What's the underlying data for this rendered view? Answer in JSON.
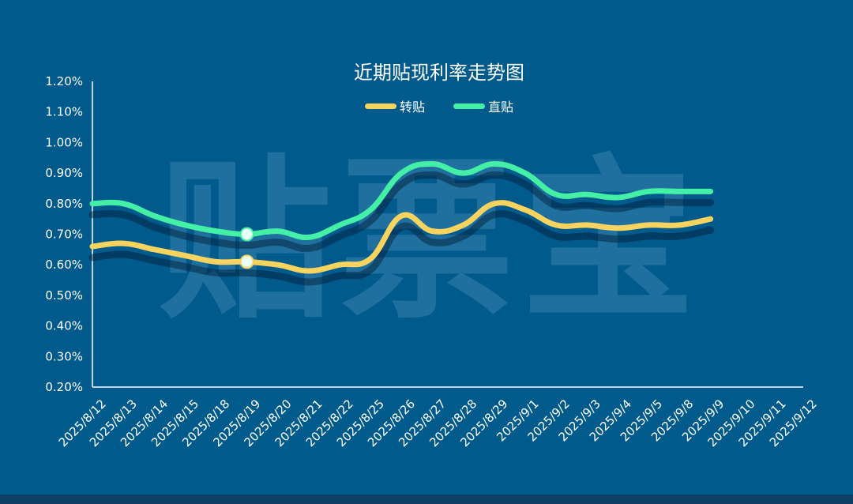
{
  "chart_data": {
    "type": "line",
    "title": "近期贴现利率走势图",
    "watermark_text": "贴票宝",
    "categories": [
      "2025/8/12",
      "2025/8/13",
      "2025/8/14",
      "2025/8/15",
      "2025/8/18",
      "2025/8/19",
      "2025/8/20",
      "2025/8/21",
      "2025/8/22",
      "2025/8/25",
      "2025/8/26",
      "2025/8/27",
      "2025/8/28",
      "2025/8/29",
      "2025/9/1",
      "2025/9/2",
      "2025/9/3",
      "2025/9/4",
      "2025/9/5",
      "2025/9/8",
      "2025/9/9",
      "2025/9/10",
      "2025/9/11",
      "2025/9/12"
    ],
    "series": [
      {
        "name": "转贴",
        "color": "#f8d35e",
        "values": [
          0.66,
          0.67,
          0.65,
          0.63,
          0.61,
          0.61,
          0.6,
          0.58,
          0.6,
          0.62,
          0.76,
          0.71,
          0.73,
          0.8,
          0.78,
          0.73,
          0.73,
          0.72,
          0.73,
          0.73,
          0.75,
          null,
          null,
          null
        ]
      },
      {
        "name": "直贴",
        "color": "#44f0a6",
        "values": [
          0.8,
          0.8,
          0.76,
          0.73,
          0.71,
          0.7,
          0.71,
          0.69,
          0.73,
          0.78,
          0.9,
          0.93,
          0.9,
          0.93,
          0.9,
          0.83,
          0.83,
          0.82,
          0.84,
          0.84,
          0.84,
          null,
          null,
          null
        ]
      }
    ],
    "y_ticks": [
      "0.20%",
      "0.30%",
      "0.40%",
      "0.50%",
      "0.60%",
      "0.70%",
      "0.80%",
      "0.90%",
      "1.00%",
      "1.10%",
      "1.20%"
    ],
    "ylim": [
      0.2,
      1.2
    ],
    "grid": false,
    "legend_position": "top-center",
    "highlighted_category": "2025/8/19",
    "colors": {
      "background": "#005a8c",
      "axis": "#ffffff",
      "text": "#ffffff"
    }
  }
}
